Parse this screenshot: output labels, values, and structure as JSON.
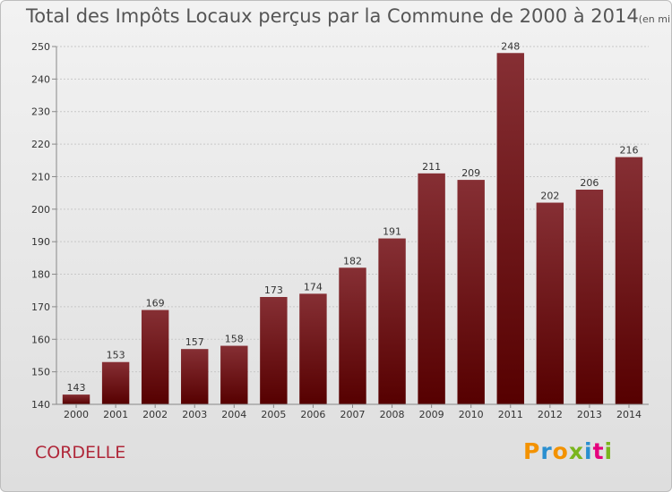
{
  "title": "Total des Impôts Locaux perçus par la Commune de 2000 à 2014",
  "unit": "(en milliers d'€)",
  "commune": "CORDELLE",
  "logo_text": "Proxiti",
  "colors": {
    "bar_top": "#862f34",
    "bar_bottom": "#560000",
    "commune": "#b0283a"
  },
  "chart_data": {
    "type": "bar",
    "title": "Total des Impôts Locaux perçus par la Commune de 2000 à 2014",
    "unit": "(en milliers d'€)",
    "categories": [
      "2000",
      "2001",
      "2002",
      "2003",
      "2004",
      "2005",
      "2006",
      "2007",
      "2008",
      "2009",
      "2010",
      "2011",
      "2012",
      "2013",
      "2014"
    ],
    "values": [
      143,
      153,
      169,
      157,
      158,
      173,
      174,
      182,
      191,
      211,
      209,
      248,
      202,
      206,
      216
    ],
    "ylim": [
      140,
      250
    ],
    "yticks": [
      140,
      150,
      160,
      170,
      180,
      190,
      200,
      210,
      220,
      230,
      240,
      250
    ],
    "grid": true,
    "legend": "none"
  }
}
